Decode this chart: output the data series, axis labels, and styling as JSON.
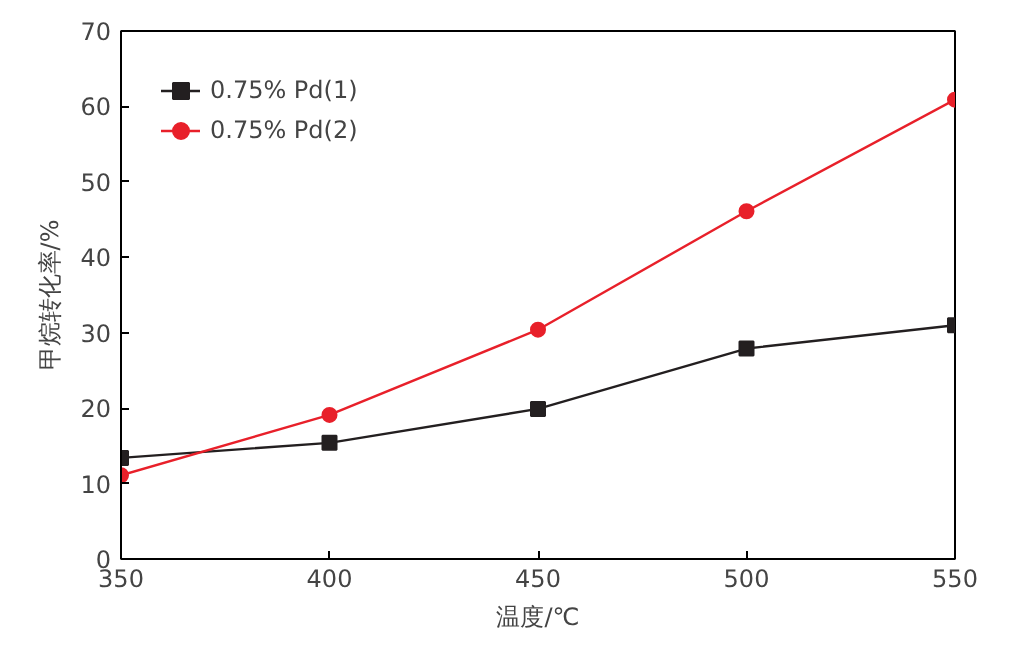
{
  "chart_data": {
    "type": "line",
    "xlabel": "温度/℃",
    "ylabel": "甲烷转化率/%",
    "x": [
      350,
      400,
      450,
      500,
      550
    ],
    "series": [
      {
        "name": "0.75% Pd(1)",
        "color": "#231f20",
        "values": [
          13.4,
          15.4,
          19.9,
          27.9,
          31.0
        ],
        "marker": "square"
      },
      {
        "name": "0.75% Pd(2)",
        "color": "#e8202a",
        "values": [
          11.1,
          19.1,
          30.4,
          46.1,
          60.9
        ],
        "marker": "circle"
      }
    ],
    "xlim": [
      350,
      550
    ],
    "ylim": [
      0,
      70
    ],
    "xticks": [
      350,
      400,
      450,
      500,
      550
    ],
    "yticks": [
      0,
      10,
      20,
      30,
      40,
      50,
      60,
      70
    ],
    "grid": false,
    "legend": "top left",
    "line_style": "solid"
  }
}
